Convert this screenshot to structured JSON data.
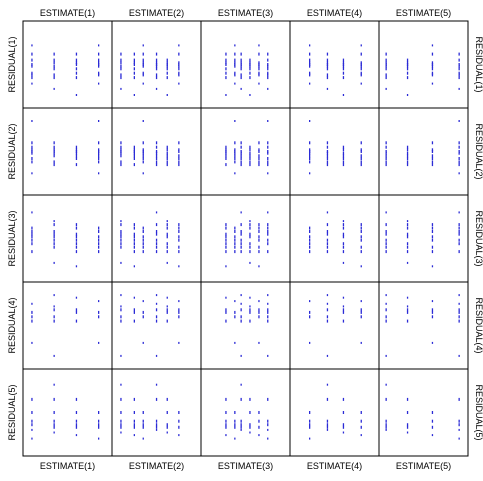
{
  "chart_data": {
    "type": "scatter",
    "layout": "scatterplot-matrix",
    "x_labels": [
      "ESTIMATE(1)",
      "ESTIMATE(2)",
      "ESTIMATE(3)",
      "ESTIMATE(4)",
      "ESTIMATE(5)"
    ],
    "y_labels": [
      "RESIDUAL(1)",
      "RESIDUAL(2)",
      "RESIDUAL(3)",
      "RESIDUAL(4)",
      "RESIDUAL(5)"
    ],
    "x_label_positions": [
      "top",
      "bottom"
    ],
    "y_label_positions": [
      "left",
      "right"
    ],
    "point_color": "#2b2bd6",
    "x_columns": [
      [
        0.1,
        0.35,
        0.6,
        0.85
      ],
      [
        0.1,
        0.25,
        0.35,
        0.5,
        0.62,
        0.75
      ],
      [
        0.28,
        0.38,
        0.45,
        0.55,
        0.65,
        0.75
      ],
      [
        0.22,
        0.42,
        0.6,
        0.8
      ],
      [
        0.08,
        0.32,
        0.6,
        0.9
      ]
    ],
    "residual_levels": [
      [
        0.72,
        0.62,
        0.55,
        0.52,
        0.5,
        0.48,
        0.45,
        0.4,
        0.38,
        0.35,
        0.28,
        0.22,
        0.15
      ],
      [
        0.85,
        0.6,
        0.55,
        0.52,
        0.5,
        0.48,
        0.45,
        0.42,
        0.38,
        0.35,
        0.25
      ],
      [
        0.8,
        0.7,
        0.66,
        0.62,
        0.58,
        0.55,
        0.52,
        0.48,
        0.44,
        0.4,
        0.35,
        0.22,
        0.18
      ],
      [
        0.85,
        0.82,
        0.78,
        0.75,
        0.72,
        0.68,
        0.65,
        0.6,
        0.55,
        0.3,
        0.15
      ],
      [
        0.82,
        0.65,
        0.5,
        0.4,
        0.36,
        0.33,
        0.3,
        0.27,
        0.24,
        0.2
      ]
    ],
    "grid": false,
    "legend": "none"
  }
}
